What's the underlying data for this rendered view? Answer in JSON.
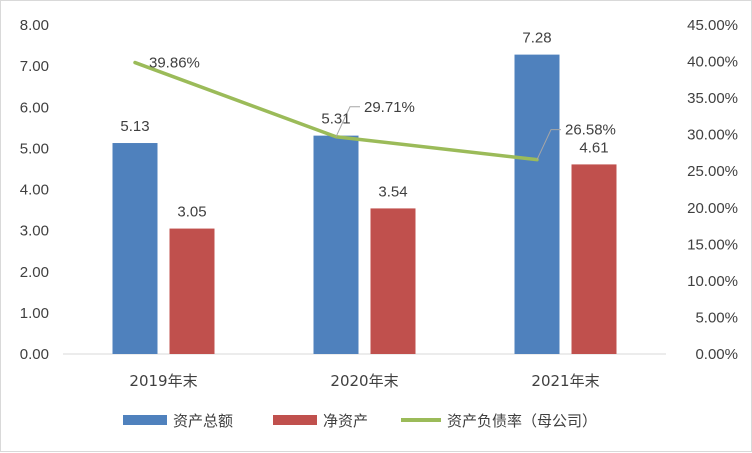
{
  "chart_data": {
    "type": "bar",
    "categories": [
      "2019年末",
      "2020年末",
      "2021年末"
    ],
    "series": [
      {
        "name": "资产总额",
        "type": "bar",
        "axis": "left",
        "color": "#4F81BD",
        "values": [
          5.13,
          5.31,
          7.28
        ],
        "labels": [
          "5.13",
          "5.31",
          "7.28"
        ]
      },
      {
        "name": "净资产",
        "type": "bar",
        "axis": "left",
        "color": "#C0504D",
        "values": [
          3.05,
          3.54,
          4.61
        ],
        "labels": [
          "3.05",
          "3.54",
          "4.61"
        ]
      },
      {
        "name": "资产负债率（母公司）",
        "type": "line",
        "axis": "right",
        "color": "#9BBB59",
        "values": [
          39.86,
          29.71,
          26.58
        ],
        "labels": [
          "39.86%",
          "29.71%",
          "26.58%"
        ]
      }
    ],
    "left_axis": {
      "ylim": [
        0,
        8
      ],
      "ticks": [
        "0.00",
        "1.00",
        "2.00",
        "3.00",
        "4.00",
        "5.00",
        "6.00",
        "7.00",
        "8.00"
      ]
    },
    "right_axis": {
      "ylim": [
        0,
        45
      ],
      "ticks": [
        "0.00%",
        "5.00%",
        "10.00%",
        "15.00%",
        "20.00%",
        "25.00%",
        "30.00%",
        "35.00%",
        "40.00%",
        "45.00%"
      ]
    },
    "grid": false,
    "legend": "bottom",
    "title": "",
    "xlabel": "",
    "ylabel": ""
  }
}
